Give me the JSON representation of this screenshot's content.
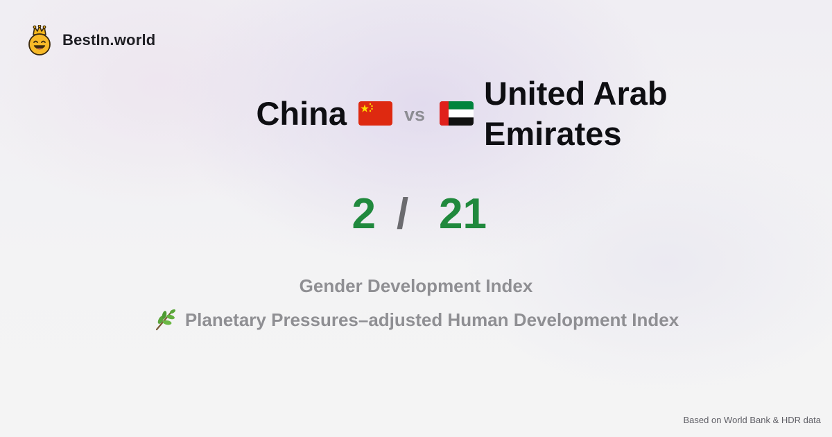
{
  "brand": {
    "name": "BestIn.world",
    "logo_icon": "crown-smiley-icon"
  },
  "comparison": {
    "country_a": {
      "name": "China",
      "flag_icon": "china-flag-icon"
    },
    "separator": "vs",
    "country_b": {
      "name": "United Arab Emirates",
      "flag_icon": "uae-flag-icon"
    }
  },
  "ranks": {
    "a": "2",
    "separator": "/",
    "b": "21",
    "color": "#20893d"
  },
  "metrics": {
    "primary": "Gender Development Index",
    "secondary": "Planetary Pressures–adjusted Human Development Index",
    "secondary_icon": "herb-leaf-icon"
  },
  "footer": {
    "source_note": "Based on World Bank & HDR data"
  }
}
